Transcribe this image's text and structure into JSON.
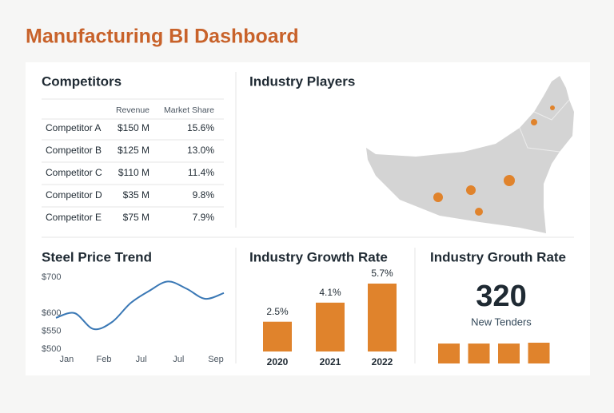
{
  "header": {
    "title": "Manufacturing BI Dashboard"
  },
  "competitors": {
    "title": "Competitors",
    "columns": [
      "Revenue",
      "Market Share"
    ],
    "rows": [
      [
        "Competitor A",
        "$150 M",
        "15.6%"
      ],
      [
        "Competitor B",
        "$125 M",
        "13.0%"
      ],
      [
        "Competitor C",
        "$110 M",
        "11.4%"
      ],
      [
        "Competitor D",
        "$35 M",
        "9.8%"
      ],
      [
        "Competitor E",
        "$75 M",
        "7.9%"
      ]
    ]
  },
  "map": {
    "title": "Industry Players"
  },
  "steel": {
    "type": "line",
    "title": "Steel Price Trend",
    "categories": [
      null,
      "Jan",
      null,
      "Feb",
      null,
      "Jul",
      null,
      "Jul",
      null,
      "Sep"
    ],
    "values": [
      587,
      600,
      556,
      575,
      628,
      662,
      688,
      668,
      640,
      656
    ],
    "color": "#3a78b5",
    "ylim": [
      500,
      700
    ],
    "yticks": [
      {
        "value": 500,
        "label": "$500"
      },
      {
        "value": 550,
        "label": "$550"
      },
      {
        "value": 600,
        "label": "$600"
      },
      {
        "value": 700,
        "label": "$700"
      }
    ]
  },
  "growth": {
    "type": "bar",
    "title": "Industry Growth Rate",
    "categories": [
      "2020",
      "2021",
      "2022"
    ],
    "values": [
      2.5,
      4.1,
      5.7
    ],
    "value_labels": [
      "2.5%",
      "4.1%",
      "5.7%"
    ],
    "color": "#e0832c"
  },
  "tenders": {
    "type": "bar",
    "title": "Industry Grouth Rate",
    "kpi": "320",
    "kpi_label": "New Tenders",
    "values": [
      24,
      24,
      24,
      25
    ],
    "color": "#e0832c"
  }
}
